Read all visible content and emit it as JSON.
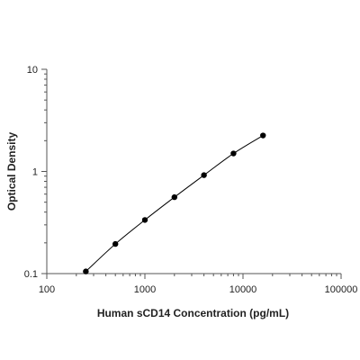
{
  "chart_data": {
    "type": "scatter",
    "title": "",
    "xlabel": "Human sCD14 Concentration (pg/mL)",
    "ylabel": "Optical Density",
    "xscale": "log",
    "yscale": "log",
    "xlim": [
      100,
      100000
    ],
    "ylim": [
      0.1,
      10
    ],
    "x_ticks": [
      "100",
      "1000",
      "10000",
      "100000"
    ],
    "y_ticks": [
      "0.1",
      "1",
      "10"
    ],
    "grid": false,
    "legend": "none",
    "fit_line": "smooth curve through points",
    "series": [
      {
        "x": [
          250,
          500,
          1000,
          2000,
          4000,
          8000,
          16000
        ],
        "y": [
          0.105,
          0.195,
          0.335,
          0.56,
          0.92,
          1.5,
          2.25
        ]
      }
    ],
    "colors": {
      "marker": "#000000",
      "line": "#000000",
      "axis": "#555555"
    }
  }
}
